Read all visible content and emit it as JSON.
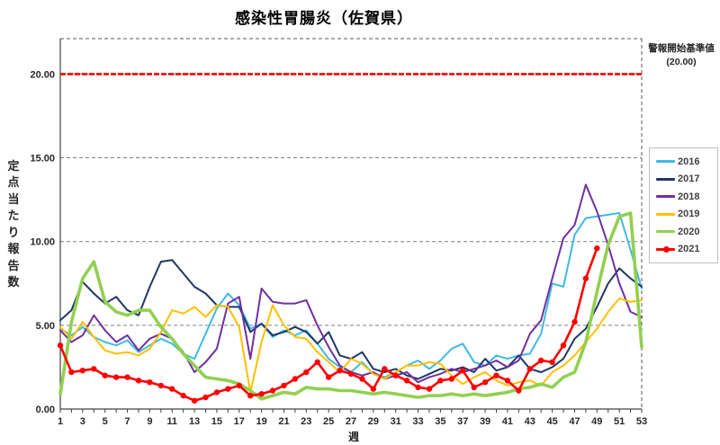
{
  "title": "感染性胃腸炎（佐賀県）",
  "axis": {
    "y_title_vertical": "定点当たり報告数",
    "x_title": "週"
  },
  "threshold_note": {
    "line1": "警報開始基準値",
    "line2": "(20.00)"
  },
  "chart_data": {
    "type": "line",
    "title": "感染性胃腸炎（佐賀県）",
    "xlabel": "週",
    "ylabel": "定点当たり報告数",
    "x_range": [
      1,
      53
    ],
    "ylim": [
      0,
      22.1
    ],
    "grid": "horizontal dashed at 5, 10, 15, 20",
    "legend_position": "right",
    "x_tick_labels": [
      "1",
      "3",
      "5",
      "7",
      "9",
      "11",
      "13",
      "15",
      "17",
      "19",
      "21",
      "23",
      "25",
      "27",
      "29",
      "31",
      "33",
      "35",
      "37",
      "39",
      "41",
      "43",
      "45",
      "47",
      "49",
      "51",
      "53"
    ],
    "y_ticks": [
      {
        "value": 0,
        "label": "0.00"
      },
      {
        "value": 5,
        "label": "5.00"
      },
      {
        "value": 10,
        "label": "10.00"
      },
      {
        "value": 15,
        "label": "15.00"
      },
      {
        "value": 20,
        "label": "20.00"
      }
    ],
    "threshold": {
      "value": 20,
      "label": "警報開始基準値",
      "value_label": "(20.00)",
      "color": "#ff0000"
    },
    "series": [
      {
        "name": "2016",
        "color": "#3fb9e5",
        "line_width": 2,
        "marker": false,
        "values": [
          4.8,
          4.4,
          4.9,
          4.3,
          4.0,
          3.8,
          4.1,
          3.4,
          3.8,
          4.2,
          3.9,
          3.3,
          3.0,
          4.5,
          6.0,
          6.9,
          6.2,
          4.8,
          5.1,
          4.3,
          4.7,
          4.4,
          4.7,
          3.9,
          3.0,
          2.5,
          2.2,
          2.8,
          2.1,
          1.9,
          2.2,
          2.6,
          2.9,
          2.4,
          2.9,
          3.6,
          3.9,
          2.8,
          2.6,
          3.2,
          3.0,
          3.2,
          3.3,
          4.5,
          7.5,
          7.3,
          10.4,
          11.4,
          11.5,
          11.6,
          11.7,
          9.5,
          7.2
        ]
      },
      {
        "name": "2017",
        "color": "#1f3864",
        "line_width": 2,
        "marker": false,
        "values": [
          5.3,
          5.9,
          7.6,
          6.9,
          6.3,
          6.7,
          5.9,
          5.6,
          7.3,
          8.8,
          8.9,
          8.1,
          7.3,
          6.9,
          6.2,
          6.1,
          6.1,
          4.6,
          5.1,
          4.4,
          4.6,
          4.9,
          4.6,
          3.9,
          4.6,
          3.2,
          3.0,
          3.4,
          2.4,
          2.2,
          2.4,
          2.0,
          1.8,
          2.1,
          2.4,
          2.3,
          2.5,
          2.2,
          3.0,
          2.3,
          2.5,
          3.2,
          2.4,
          2.2,
          2.5,
          3.0,
          4.2,
          4.8,
          6.1,
          7.5,
          8.4,
          7.8,
          7.3
        ]
      },
      {
        "name": "2018",
        "color": "#7030a0",
        "line_width": 2,
        "marker": false,
        "values": [
          4.7,
          4.0,
          4.4,
          5.6,
          4.7,
          4.0,
          4.4,
          3.5,
          4.2,
          4.5,
          4.2,
          3.4,
          2.2,
          2.8,
          3.6,
          6.3,
          6.7,
          3.0,
          7.2,
          6.4,
          6.3,
          6.3,
          6.5,
          5.0,
          3.7,
          2.6,
          2.2,
          2.0,
          2.2,
          1.8,
          2.0,
          2.2,
          1.6,
          1.9,
          2.1,
          2.4,
          2.2,
          2.4,
          2.6,
          2.9,
          2.5,
          2.9,
          4.5,
          5.3,
          7.8,
          10.2,
          11.0,
          13.4,
          11.8,
          9.8,
          7.5,
          5.8,
          5.5
        ]
      },
      {
        "name": "2019",
        "color": "#ffc000",
        "line_width": 2,
        "marker": false,
        "values": [
          4.9,
          4.2,
          5.2,
          4.3,
          3.5,
          3.3,
          3.4,
          3.2,
          3.6,
          4.6,
          5.9,
          5.7,
          6.1,
          5.5,
          6.2,
          6.1,
          4.9,
          1.0,
          4.0,
          6.2,
          5.0,
          4.3,
          4.2,
          3.4,
          2.8,
          2.2,
          3.0,
          2.7,
          2.1,
          1.8,
          2.2,
          2.6,
          2.6,
          2.8,
          2.7,
          2.0,
          1.5,
          1.9,
          2.2,
          1.7,
          1.4,
          1.6,
          1.7,
          1.4,
          2.2,
          2.6,
          3.2,
          4.0,
          4.8,
          5.8,
          6.6,
          6.4,
          6.5
        ]
      },
      {
        "name": "2020",
        "color": "#92d050",
        "line_width": 3.6,
        "marker": false,
        "values": [
          0.9,
          5.2,
          7.8,
          8.8,
          6.4,
          5.8,
          5.6,
          5.9,
          5.9,
          4.9,
          4.2,
          3.3,
          2.6,
          1.9,
          1.8,
          1.7,
          1.5,
          1.1,
          0.6,
          0.8,
          1.0,
          0.9,
          1.3,
          1.2,
          1.2,
          1.1,
          1.1,
          1.0,
          0.9,
          1.0,
          0.9,
          0.8,
          0.7,
          0.8,
          0.8,
          0.9,
          0.8,
          0.9,
          0.8,
          0.9,
          1.0,
          1.2,
          1.3,
          1.5,
          1.3,
          1.9,
          2.2,
          4.0,
          7.0,
          9.8,
          11.5,
          11.7,
          3.7
        ]
      },
      {
        "name": "2021",
        "color": "#ff0000",
        "line_width": 2.6,
        "marker": true,
        "values": [
          3.8,
          2.2,
          2.3,
          2.4,
          2.0,
          1.9,
          1.9,
          1.7,
          1.6,
          1.4,
          1.2,
          0.8,
          0.5,
          0.7,
          1.0,
          1.2,
          1.4,
          0.8,
          0.9,
          1.1,
          1.4,
          1.8,
          2.2,
          2.8,
          1.9,
          2.3,
          2.1,
          1.8,
          1.2,
          2.4,
          2.0,
          1.7,
          1.3,
          1.2,
          1.7,
          1.8,
          2.3,
          1.3,
          1.6,
          2.0,
          1.7,
          1.1,
          2.4,
          2.9,
          2.8,
          3.8,
          5.2,
          7.8,
          9.6
        ]
      }
    ]
  }
}
